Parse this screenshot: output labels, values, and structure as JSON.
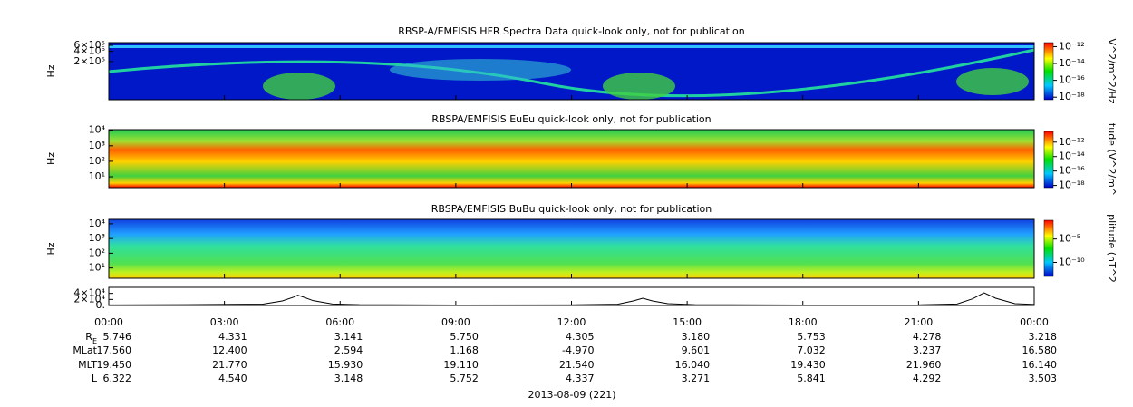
{
  "chart_data": [
    {
      "type": "spectrogram",
      "title": "RBSP-A/EMFISIS  HFR Spectra Data quick-look only, not for publication",
      "y_label": "Hz",
      "log_y": true,
      "ylim": [
        15000,
        720000
      ],
      "yticks": [
        {
          "value": 200000,
          "label": "2×10⁵"
        },
        {
          "value": 400000,
          "label": "4×10⁵"
        },
        {
          "value": 600000,
          "label": "6×10⁵"
        }
      ],
      "colorbar": {
        "label": "V^2/m^2/Hz",
        "ylim": [
          5e-19,
          3e-12
        ],
        "yticks": [
          {
            "value": 1e-12,
            "label": "10⁻¹²"
          },
          {
            "value": 1e-14,
            "label": "10⁻¹⁴"
          },
          {
            "value": 1e-16,
            "label": "10⁻¹⁶"
          },
          {
            "value": 1e-18,
            "label": "10⁻¹⁸"
          }
        ]
      }
    },
    {
      "type": "spectrogram",
      "title": "RBSPA/EMFISIS  EuEu quick-look only, not for publication",
      "y_label": "Hz",
      "log_y": true,
      "ylim": [
        2,
        11000
      ],
      "yticks": [
        {
          "value": 10,
          "label": "10¹"
        },
        {
          "value": 100,
          "label": "10²"
        },
        {
          "value": 1000,
          "label": "10³"
        },
        {
          "value": 10000,
          "label": "10⁴"
        }
      ],
      "colorbar": {
        "label": "tude (V^2/m^",
        "ylim": [
          5e-19,
          3e-11
        ],
        "yticks": [
          {
            "value": 1e-12,
            "label": "10⁻¹²"
          },
          {
            "value": 1e-14,
            "label": "10⁻¹⁴"
          },
          {
            "value": 1e-16,
            "label": "10⁻¹⁶"
          },
          {
            "value": 1e-18,
            "label": "10⁻¹⁸"
          }
        ]
      }
    },
    {
      "type": "spectrogram",
      "title": "RBSPA/EMFISIS  BuBu quick-look only, not for publication",
      "y_label": "Hz",
      "log_y": true,
      "ylim": [
        2,
        20000
      ],
      "yticks": [
        {
          "value": 10,
          "label": "10¹"
        },
        {
          "value": 100,
          "label": "10²"
        },
        {
          "value": 1000,
          "label": "10³"
        },
        {
          "value": 10000,
          "label": "10⁴"
        }
      ],
      "colorbar": {
        "label": "plitude (nT^2",
        "ylim": [
          1e-13,
          0.1
        ],
        "yticks": [
          {
            "value": 1e-05,
            "label": "10⁻⁵"
          },
          {
            "value": 1e-10,
            "label": "10⁻¹⁰"
          }
        ]
      }
    },
    {
      "type": "line",
      "color": "#000000",
      "ylim": [
        0,
        60000
      ],
      "yticks": [
        {
          "value": 0,
          "label": "0."
        },
        {
          "value": 20000,
          "label": "2×10⁴"
        },
        {
          "value": 40000,
          "label": "4×10⁴"
        }
      ],
      "x": [
        0,
        2,
        4,
        4.5,
        4.8,
        4.9,
        5.0,
        5.3,
        5.8,
        6.5,
        9,
        12,
        13.2,
        13.6,
        13.85,
        14.1,
        14.5,
        15.2,
        18,
        21,
        22,
        22.4,
        22.7,
        23.0,
        23.5,
        24
      ],
      "values": [
        2000,
        2500,
        4500,
        15000,
        28000,
        34000,
        30000,
        16000,
        5000,
        2500,
        1500,
        2000,
        4000,
        15000,
        24000,
        15000,
        6000,
        2500,
        1500,
        2000,
        5000,
        22000,
        42000,
        24000,
        6000,
        3500
      ]
    }
  ],
  "x_axis": {
    "xlim": [
      0,
      24
    ],
    "xticks": [
      {
        "value": 0,
        "label": "00:00"
      },
      {
        "value": 3,
        "label": "03:00"
      },
      {
        "value": 6,
        "label": "06:00"
      },
      {
        "value": 9,
        "label": "09:00"
      },
      {
        "value": 12,
        "label": "12:00"
      },
      {
        "value": 15,
        "label": "15:00"
      },
      {
        "value": 18,
        "label": "18:00"
      },
      {
        "value": 21,
        "label": "21:00"
      },
      {
        "value": 24,
        "label": "00:00"
      }
    ]
  },
  "ephemeris": {
    "rows": [
      {
        "label": "R",
        "sub": "E",
        "values": [
          "5.746",
          "4.331",
          "3.141",
          "5.750",
          "4.305",
          "3.180",
          "5.753",
          "4.278",
          "3.218"
        ]
      },
      {
        "label": "MLat",
        "values": [
          "17.560",
          "12.400",
          "2.594",
          "1.168",
          "-4.970",
          "9.601",
          "7.032",
          "3.237",
          "16.580"
        ]
      },
      {
        "label": "MLT",
        "values": [
          "19.450",
          "21.770",
          "15.930",
          "19.110",
          "21.540",
          "16.040",
          "19.430",
          "21.960",
          "16.140"
        ]
      },
      {
        "label": "L",
        "values": [
          "6.322",
          "4.540",
          "3.148",
          "5.752",
          "4.337",
          "3.271",
          "5.841",
          "4.292",
          "3.503"
        ]
      }
    ]
  },
  "date": "2013-08-09 (221)"
}
